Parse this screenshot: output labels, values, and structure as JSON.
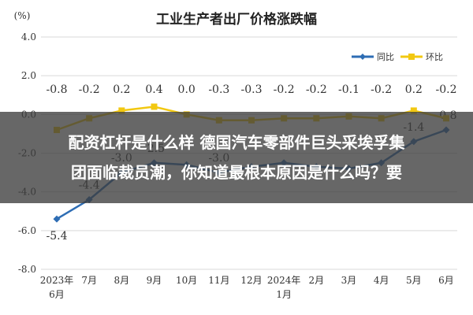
{
  "chart_data": {
    "type": "line",
    "title": "工业生产者出厂价格涨跌幅",
    "ylabel": "(%)",
    "ylim": [
      -8.0,
      4.0
    ],
    "yticks": [
      "4.0",
      "2.0",
      "0.0",
      "-2.0",
      "-4.0",
      "-6.0",
      "-8.0"
    ],
    "yticks_values": [
      4.0,
      2.0,
      0.0,
      -2.0,
      -4.0,
      -6.0,
      -8.0
    ],
    "categories": [
      [
        "2023年",
        "6月"
      ],
      [
        "7月"
      ],
      [
        "8月"
      ],
      [
        "9月"
      ],
      [
        "10月"
      ],
      [
        "11月"
      ],
      [
        "12月"
      ],
      [
        "2024年",
        "1月"
      ],
      [
        "2月"
      ],
      [
        "3月"
      ],
      [
        "4月"
      ],
      [
        "5月"
      ],
      [
        "6月"
      ]
    ],
    "grid": true,
    "legend_position": "top-right",
    "series": [
      {
        "name": "同比",
        "color": "#2e6db4",
        "values": [
          -5.4,
          -4.4,
          -3.0,
          -2.5,
          -2.6,
          -3.0,
          -2.7,
          -2.5,
          -2.7,
          -2.8,
          -2.5,
          -1.4,
          -0.8
        ],
        "labels": [
          "-5.4",
          "-4.4",
          "-3.0",
          "-2.5",
          "",
          "-3.0",
          "",
          "",
          "",
          "",
          "",
          "-1.4",
          "-0.8"
        ]
      },
      {
        "name": "环比",
        "color": "#f2c811",
        "values": [
          -0.8,
          -0.2,
          0.2,
          0.4,
          0.0,
          -0.3,
          -0.3,
          -0.2,
          -0.2,
          -0.1,
          -0.2,
          0.2,
          -0.2
        ],
        "labels": [
          "-0.8",
          "-0.2",
          "0.2",
          "0.4",
          "0.0",
          "-0.3",
          "-0.3",
          "-0.2",
          "-0.2",
          "-0.1",
          "-0.2",
          "0.2",
          "-0.2"
        ]
      }
    ]
  },
  "overlay": {
    "line1": "配资杠杆是什么样 德国汽车零部件巨头采埃孚集",
    "line2": "团面临裁员潮，你知道最根本原因是什么吗？要"
  }
}
